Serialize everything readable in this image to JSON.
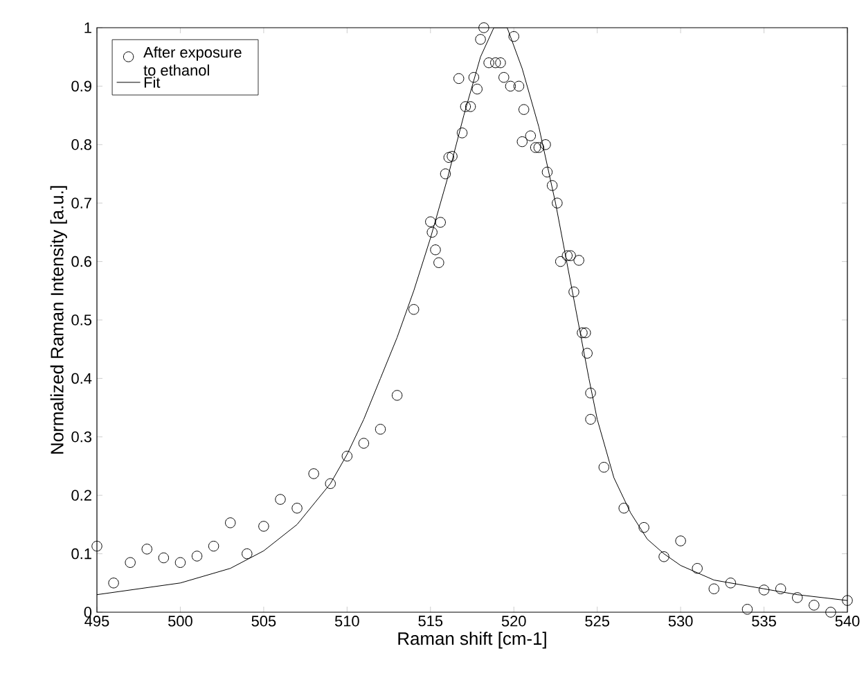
{
  "chart_data": {
    "type": "scatter",
    "xlabel": "Raman shift [cm-1]",
    "ylabel": "Normalized Raman Intensity [a.u.]",
    "xlim": [
      495,
      540
    ],
    "ylim": [
      0,
      1
    ],
    "xticks": [
      495,
      500,
      505,
      510,
      515,
      520,
      525,
      530,
      535,
      540
    ],
    "yticks": [
      0,
      0.1,
      0.2,
      0.3,
      0.4,
      0.5,
      0.6,
      0.7,
      0.8,
      0.9,
      1
    ],
    "legend": "top left",
    "grid": false,
    "series": [
      {
        "name": "After exposure to ethanol",
        "marker": "circle",
        "color": "#000000",
        "x": [
          495,
          496,
          497,
          498,
          499,
          500,
          501,
          502,
          503,
          504,
          505,
          506,
          507,
          508,
          509,
          510,
          511,
          512,
          513,
          514,
          515,
          515.1,
          515.3,
          515.5,
          515.6,
          515.9,
          516.1,
          516.3,
          516.7,
          516.9,
          517.1,
          517.4,
          517.6,
          517.8,
          518.0,
          518.2,
          518.5,
          518.9,
          519.2,
          519.4,
          519.8,
          520.0,
          520.3,
          520.5,
          520.6,
          521.0,
          521.3,
          521.5,
          521.9,
          522.0,
          522.3,
          522.6,
          522.8,
          523.2,
          523.4,
          523.6,
          523.9,
          524.1,
          524.3,
          524.4,
          524.6,
          524.6,
          525.4,
          526.6,
          527.8,
          529,
          530,
          531,
          532,
          533,
          534,
          535,
          536,
          537,
          538,
          539,
          540
        ],
        "values": [
          0.113,
          0.05,
          0.085,
          0.108,
          0.093,
          0.085,
          0.096,
          0.113,
          0.153,
          0.1,
          0.147,
          0.193,
          0.178,
          0.237,
          0.22,
          0.267,
          0.289,
          0.313,
          0.371,
          0.518,
          0.668,
          0.65,
          0.62,
          0.598,
          0.667,
          0.75,
          0.778,
          0.78,
          0.913,
          0.82,
          0.865,
          0.865,
          0.915,
          0.895,
          0.98,
          1.0,
          0.94,
          0.94,
          0.94,
          0.915,
          0.9,
          0.985,
          0.9,
          0.805,
          0.86,
          0.815,
          0.795,
          0.795,
          0.8,
          0.753,
          0.73,
          0.7,
          0.6,
          0.61,
          0.61,
          0.548,
          0.602,
          0.478,
          0.478,
          0.443,
          0.375,
          0.33,
          0.248,
          0.178,
          0.145,
          0.095,
          0.122,
          0.075,
          0.04,
          0.05,
          0.005,
          0.038,
          0.04,
          0.025,
          0.012,
          0.0,
          0.02
        ]
      },
      {
        "name": "Fit",
        "type": "line",
        "marker": "none",
        "line_style": "solid",
        "color": "#000000",
        "x": [
          495,
          500,
          503,
          505,
          507,
          509,
          510,
          511,
          512,
          513,
          514,
          515,
          516,
          517,
          518,
          518.8,
          519.6,
          520.5,
          521.5,
          522.5,
          523.5,
          524.5,
          525,
          526,
          527,
          528,
          529,
          530,
          532,
          535,
          537,
          540
        ],
        "values": [
          0.03,
          0.05,
          0.075,
          0.105,
          0.15,
          0.22,
          0.27,
          0.33,
          0.4,
          0.47,
          0.55,
          0.64,
          0.74,
          0.85,
          0.95,
          1.0,
          1.0,
          0.93,
          0.83,
          0.7,
          0.55,
          0.4,
          0.33,
          0.23,
          0.17,
          0.125,
          0.1,
          0.08,
          0.055,
          0.04,
          0.03,
          0.02
        ]
      }
    ]
  }
}
